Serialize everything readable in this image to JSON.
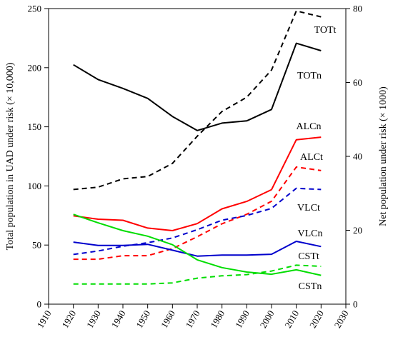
{
  "chart_data": {
    "type": "line",
    "title": "",
    "xlabel": "",
    "ylabel_left": "Total population in UAD under risk (× 10,000)",
    "ylabel_right": "Net population under risk (× 1000)",
    "xlim": [
      1910,
      2030
    ],
    "xticks": [
      1910,
      1920,
      1930,
      1940,
      1950,
      1960,
      1970,
      1980,
      1990,
      2000,
      2010,
      2020,
      2030
    ],
    "ylim_left": [
      0,
      250
    ],
    "yticks_left": [
      0,
      50,
      100,
      150,
      200,
      250
    ],
    "ylim_right": [
      0,
      80
    ],
    "yticks_right": [
      0,
      20,
      40,
      60,
      80
    ],
    "x": [
      1920,
      1930,
      1940,
      1950,
      1960,
      1970,
      1980,
      1990,
      2000,
      2010,
      2020
    ],
    "series": [
      {
        "name": "TOTt",
        "axis": "left",
        "style": "dashed",
        "color": "#000000",
        "values": [
          97,
          99,
          106,
          108,
          119,
          142,
          163,
          175,
          198,
          248,
          243
        ]
      },
      {
        "name": "TOTn",
        "axis": "right",
        "style": "solid",
        "color": "#000000",
        "values": [
          64.8,
          60.8,
          58.4,
          55.7,
          50.8,
          47.0,
          49.0,
          49.6,
          52.7,
          70.6,
          68.6
        ]
      },
      {
        "name": "ALCn",
        "axis": "right",
        "style": "solid",
        "color": "#ff0000",
        "values": [
          23.9,
          23.0,
          22.7,
          20.6,
          19.9,
          21.8,
          25.8,
          27.8,
          31.0,
          44.5,
          45.2
        ]
      },
      {
        "name": "ALCt",
        "axis": "left",
        "style": "dashed",
        "color": "#ff0000",
        "values": [
          38,
          38,
          41,
          41,
          47,
          57,
          68,
          76,
          87,
          116,
          113
        ]
      },
      {
        "name": "VLCt",
        "axis": "left",
        "style": "dashed",
        "color": "#0000cc",
        "values": [
          42,
          45,
          49,
          52,
          56,
          63,
          71,
          75,
          81,
          98,
          97
        ]
      },
      {
        "name": "VLCn",
        "axis": "right",
        "style": "solid",
        "color": "#0000cc",
        "values": [
          16.8,
          15.9,
          15.9,
          16.2,
          14.6,
          13.0,
          13.3,
          13.3,
          13.5,
          17.0,
          15.6
        ]
      },
      {
        "name": "CSTt",
        "axis": "left",
        "style": "dashed",
        "color": "#00dd00",
        "values": [
          17,
          17,
          17,
          17,
          18,
          22,
          24,
          25,
          28,
          33,
          32
        ]
      },
      {
        "name": "CSTn",
        "axis": "right",
        "style": "solid",
        "color": "#00dd00",
        "values": [
          24.3,
          22.0,
          19.9,
          18.4,
          16.1,
          12.0,
          9.9,
          8.7,
          8.1,
          9.3,
          7.8
        ]
      }
    ]
  }
}
